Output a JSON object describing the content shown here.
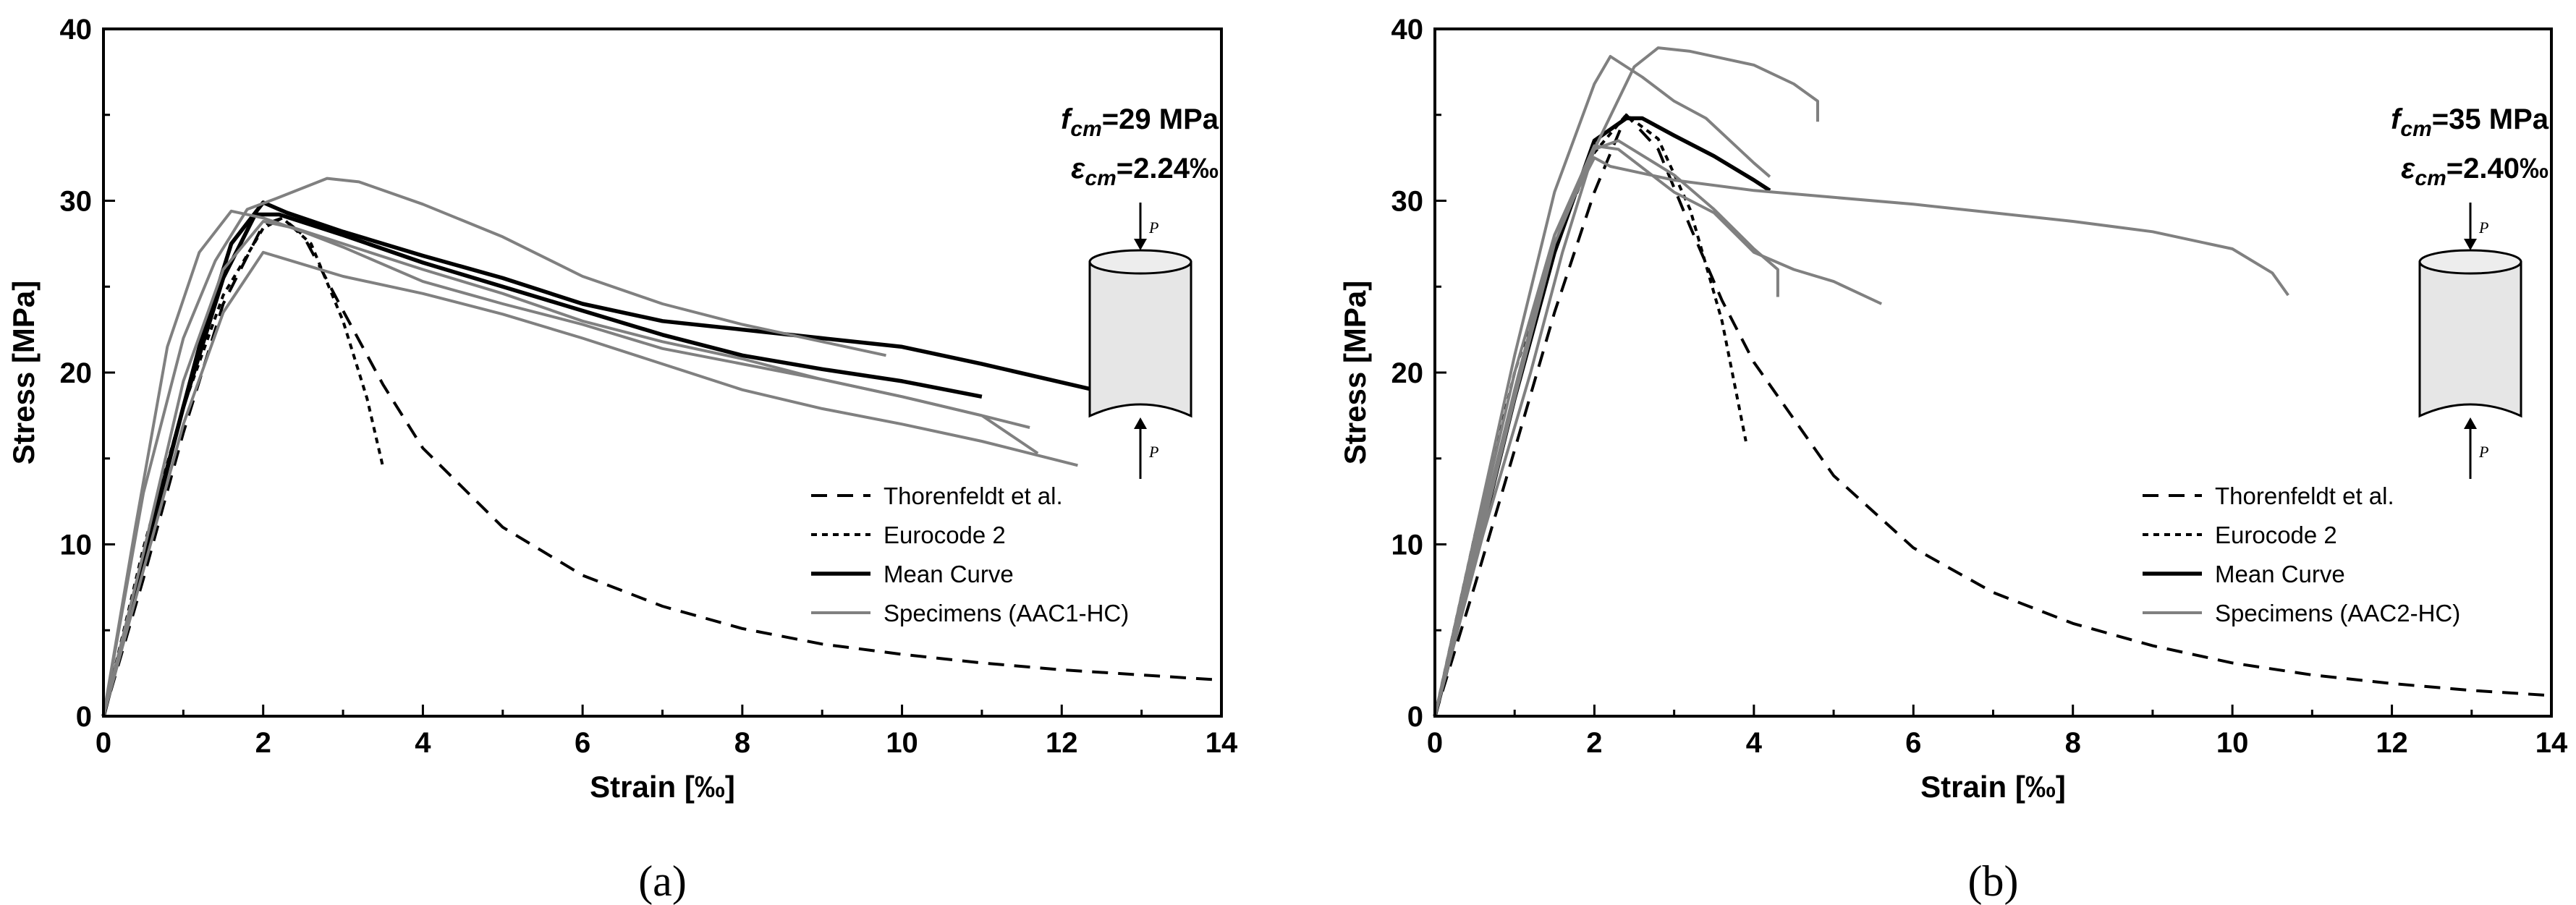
{
  "chart_data": [
    {
      "type": "line",
      "panel_label": "(a)",
      "xlabel": "Strain [‰]",
      "ylabel": "Stress [MPa]",
      "xlim": [
        0,
        14
      ],
      "ylim": [
        0,
        40
      ],
      "xticks": [
        "0",
        "2",
        "4",
        "6",
        "8",
        "10",
        "12",
        "14"
      ],
      "yticks": [
        "0",
        "10",
        "20",
        "30",
        "40"
      ],
      "grid": false,
      "legend_position": "lower-right",
      "annotation": {
        "fcm_symbol": "f",
        "fcm_sub": "cm",
        "fcm_value": "=29 MPa",
        "ecm_symbol": "ε",
        "ecm_sub": "cm",
        "ecm_value": "=2.24‰",
        "load_label_top": "P",
        "load_label_bottom": "P"
      },
      "legend": [
        {
          "label": "Thorenfeldt et al.",
          "style": "dashed",
          "color": "#000000"
        },
        {
          "label": "Eurocode 2",
          "style": "dotted",
          "color": "#000000"
        },
        {
          "label": "Mean Curve",
          "style": "solid-thick",
          "color": "#000000"
        },
        {
          "label": "Specimens (AAC1-HC)",
          "style": "solid",
          "color": "#808080"
        }
      ],
      "series": [
        {
          "name": "Thorenfeldt et al.",
          "style": "dashed",
          "color": "#000000",
          "x": [
            0,
            0.5,
            1.0,
            1.5,
            2.0,
            2.24,
            2.5,
            3.0,
            3.5,
            4.0,
            5.0,
            6.0,
            7.0,
            8.0,
            9.0,
            10.0,
            11.0,
            12.0,
            13.0,
            14.0
          ],
          "y": [
            0,
            8.0,
            16.5,
            24.0,
            28.6,
            29.0,
            28.0,
            23.6,
            19.3,
            15.6,
            11.0,
            8.2,
            6.4,
            5.1,
            4.2,
            3.6,
            3.1,
            2.7,
            2.4,
            2.1
          ]
        },
        {
          "name": "Eurocode 2",
          "style": "dotted",
          "color": "#000000",
          "x": [
            0,
            0.5,
            1.0,
            1.5,
            2.0,
            2.24,
            2.6,
            3.0,
            3.3,
            3.5
          ],
          "y": [
            0,
            9.8,
            18.0,
            24.5,
            28.4,
            29.0,
            27.5,
            23.0,
            18.5,
            14.5
          ]
        },
        {
          "name": "Mean Curve",
          "style": "solid-thick",
          "color": "#000000",
          "x": [
            0,
            0.5,
            1.0,
            1.5,
            1.9,
            2.2,
            3.0,
            4.0,
            5.0,
            6.0,
            7.0,
            8.0,
            9.0,
            10.0,
            11.0
          ],
          "y": [
            0,
            9.0,
            18.0,
            25.5,
            29.2,
            29.2,
            28.0,
            26.4,
            25.0,
            23.6,
            22.2,
            21.0,
            20.2,
            19.5,
            18.6
          ]
        },
        {
          "name": "Mean Curve (upper test)",
          "style": "solid-thick",
          "color": "#000000",
          "x": [
            0,
            0.6,
            1.2,
            1.6,
            2.0,
            2.3,
            3.0,
            4.0,
            5.0,
            6.0,
            7.0,
            8.0,
            9.0,
            10.0,
            11.0,
            12.4
          ],
          "y": [
            0,
            11.0,
            21.5,
            27.5,
            29.9,
            29.3,
            28.2,
            26.8,
            25.5,
            24.0,
            23.0,
            22.5,
            22.0,
            21.5,
            20.5,
            19.0
          ]
        },
        {
          "name": "Specimen 1",
          "style": "solid",
          "color": "#808080",
          "x": [
            0,
            0.5,
            1.0,
            1.4,
            1.8,
            2.2,
            2.8,
            3.2,
            4.0,
            5.0,
            6.0,
            7.0,
            8.0,
            9.0,
            9.8
          ],
          "y": [
            0,
            13.0,
            22.0,
            26.5,
            29.5,
            30.2,
            31.3,
            31.1,
            29.8,
            27.9,
            25.6,
            24.0,
            22.8,
            21.8,
            21.0
          ]
        },
        {
          "name": "Specimen 2",
          "style": "solid",
          "color": "#808080",
          "x": [
            0,
            0.4,
            0.8,
            1.2,
            1.6,
            2.0,
            2.5,
            3.0,
            4.0,
            5.0,
            6.0,
            7.0,
            8.0,
            9.0,
            10.0,
            11.0,
            11.6
          ],
          "y": [
            0,
            11.0,
            21.5,
            27.0,
            29.4,
            29.0,
            28.2,
            27.3,
            25.3,
            24.0,
            22.8,
            21.4,
            20.5,
            19.6,
            18.6,
            17.5,
            16.8
          ]
        },
        {
          "name": "Specimen 3",
          "style": "solid",
          "color": "#808080",
          "x": [
            0,
            0.5,
            1.0,
            1.5,
            2.0,
            2.5,
            3.0,
            4.0,
            5.0,
            6.0,
            7.0,
            8.0,
            9.0,
            10.0,
            11.0,
            12.2
          ],
          "y": [
            0,
            8.5,
            17.0,
            23.5,
            27.0,
            26.3,
            25.6,
            24.6,
            23.4,
            22.0,
            20.5,
            19.0,
            17.9,
            17.0,
            16.0,
            14.6
          ]
        },
        {
          "name": "Specimen 4",
          "style": "solid",
          "color": "#808080",
          "x": [
            0,
            0.5,
            1.0,
            1.5,
            2.0,
            2.4,
            3.0,
            4.0,
            5.0,
            6.0,
            7.0,
            8.0,
            9.0,
            10.0,
            11.0,
            11.7
          ],
          "y": [
            0,
            9.5,
            19.5,
            26.0,
            28.8,
            28.4,
            27.5,
            26.0,
            24.6,
            23.0,
            21.8,
            20.8,
            19.6,
            18.6,
            17.5,
            15.3
          ]
        }
      ]
    },
    {
      "type": "line",
      "panel_label": "(b)",
      "xlabel": "Strain [‰]",
      "ylabel": "Stress [MPa]",
      "xlim": [
        0,
        14
      ],
      "ylim": [
        0,
        40
      ],
      "xticks": [
        "0",
        "2",
        "4",
        "6",
        "8",
        "10",
        "12",
        "14"
      ],
      "yticks": [
        "0",
        "10",
        "20",
        "30",
        "40"
      ],
      "grid": false,
      "legend_position": "lower-right",
      "annotation": {
        "fcm_symbol": "f",
        "fcm_sub": "cm",
        "fcm_value": "=35 MPa",
        "ecm_symbol": "ε",
        "ecm_sub": "cm",
        "ecm_value": "=2.40‰",
        "load_label_top": "P",
        "load_label_bottom": "P"
      },
      "legend": [
        {
          "label": "Thorenfeldt et al.",
          "style": "dashed",
          "color": "#000000"
        },
        {
          "label": "Eurocode 2",
          "style": "dotted",
          "color": "#000000"
        },
        {
          "label": "Mean Curve",
          "style": "solid-thick",
          "color": "#000000"
        },
        {
          "label": "Specimens (AAC2-HC)",
          "style": "solid",
          "color": "#808080"
        }
      ],
      "series": [
        {
          "name": "Thorenfeldt et al.",
          "style": "dashed",
          "color": "#000000",
          "x": [
            0,
            0.5,
            1.0,
            1.5,
            2.0,
            2.4,
            2.8,
            3.2,
            3.6,
            4.0,
            5.0,
            6.0,
            7.0,
            8.0,
            9.0,
            10.0,
            11.0,
            12.0,
            13.0,
            14.0
          ],
          "y": [
            0,
            7.6,
            15.5,
            23.5,
            30.5,
            35.0,
            33.0,
            28.5,
            24.2,
            20.6,
            14.0,
            9.8,
            7.2,
            5.4,
            4.1,
            3.1,
            2.4,
            1.9,
            1.5,
            1.2
          ]
        },
        {
          "name": "Eurocode 2",
          "style": "dotted",
          "color": "#000000",
          "x": [
            0,
            0.5,
            1.0,
            1.5,
            2.0,
            2.4,
            2.8,
            3.2,
            3.6,
            3.9
          ],
          "y": [
            0,
            10.5,
            20.0,
            27.5,
            32.8,
            35.0,
            33.6,
            29.5,
            23.0,
            16.0
          ]
        },
        {
          "name": "Mean Curve",
          "style": "solid-thick",
          "color": "#000000",
          "x": [
            0,
            0.5,
            1.0,
            1.5,
            2.0,
            2.4,
            2.6,
            3.0,
            3.5,
            4.0,
            4.2
          ],
          "y": [
            0,
            9.0,
            18.5,
            27.0,
            33.5,
            34.8,
            34.8,
            33.8,
            32.6,
            31.2,
            30.6
          ]
        },
        {
          "name": "Specimen 1",
          "style": "solid",
          "color": "#808080",
          "x": [
            0,
            0.5,
            1.0,
            1.5,
            2.0,
            2.2,
            2.6,
            3.0,
            3.4,
            4.0,
            4.2
          ],
          "y": [
            0,
            10.5,
            21.0,
            30.5,
            36.8,
            38.4,
            37.2,
            35.8,
            34.8,
            32.2,
            31.4
          ]
        },
        {
          "name": "Specimen 2",
          "style": "solid",
          "color": "#808080",
          "x": [
            0,
            0.6,
            1.2,
            1.6,
            2.0,
            2.5,
            2.8,
            3.2,
            3.6,
            4.0,
            4.5,
            4.8,
            4.8
          ],
          "y": [
            0,
            10.5,
            20.0,
            27.0,
            33.0,
            37.8,
            38.9,
            38.7,
            38.3,
            37.9,
            36.8,
            35.8,
            34.6
          ]
        },
        {
          "name": "Specimen 3",
          "style": "solid",
          "color": "#808080",
          "x": [
            0,
            0.5,
            1.0,
            1.5,
            2.0,
            2.2,
            3.0,
            4.0,
            5.0,
            6.0,
            7.0,
            8.0,
            9.0,
            10.0,
            10.5,
            10.7
          ],
          "y": [
            0,
            10.0,
            20.0,
            28.0,
            32.5,
            32.0,
            31.2,
            30.6,
            30.2,
            29.8,
            29.3,
            28.8,
            28.2,
            27.2,
            25.8,
            24.5
          ]
        },
        {
          "name": "Specimen 4",
          "style": "solid",
          "color": "#808080",
          "x": [
            0,
            0.5,
            1.0,
            1.5,
            2.0,
            2.3,
            3.0,
            3.5,
            4.0,
            4.3,
            4.3
          ],
          "y": [
            0,
            9.0,
            18.5,
            27.5,
            33.0,
            33.5,
            31.5,
            29.5,
            27.2,
            26.0,
            24.4
          ]
        },
        {
          "name": "Specimen 5",
          "style": "solid",
          "color": "#808080",
          "x": [
            0,
            0.5,
            1.0,
            1.5,
            2.0,
            2.3,
            3.0,
            3.5,
            4.0,
            4.5,
            5.0,
            5.6
          ],
          "y": [
            0,
            9.5,
            19.0,
            28.0,
            33.2,
            33.0,
            30.5,
            29.3,
            27.0,
            26.0,
            25.3,
            24.0
          ]
        }
      ]
    }
  ]
}
